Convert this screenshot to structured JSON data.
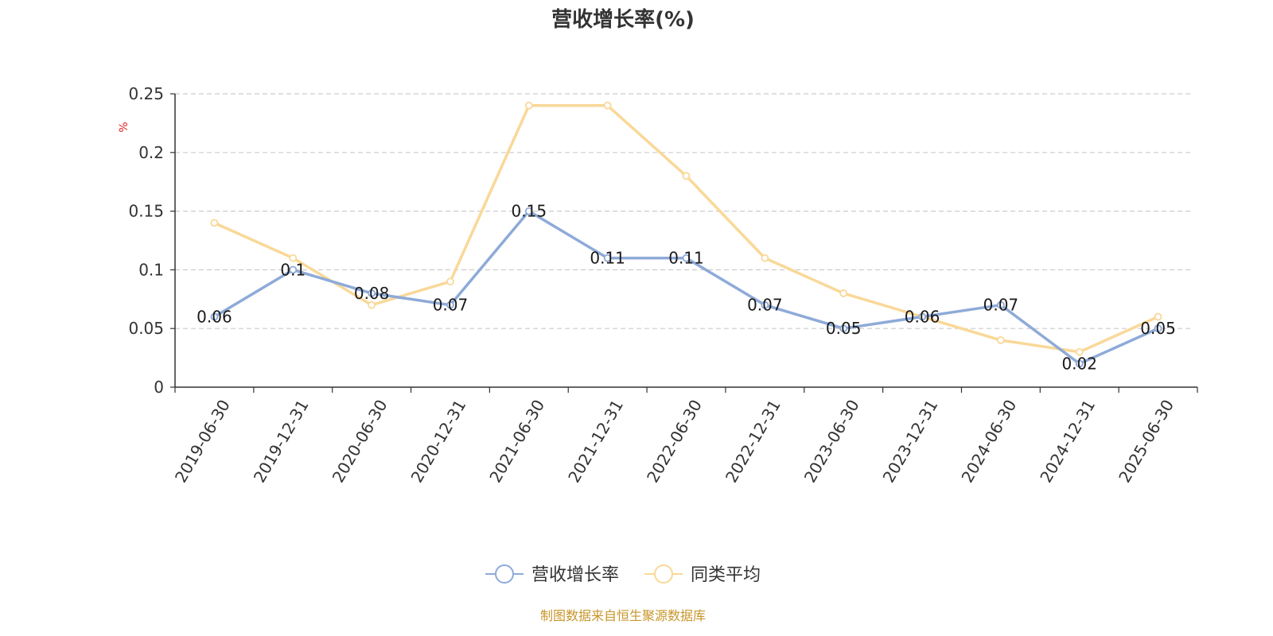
{
  "chart_data": {
    "type": "line",
    "title": "营收增长率(%)",
    "unit_label": "%",
    "categories": [
      "2019-06-30",
      "2019-12-31",
      "2020-06-30",
      "2020-12-31",
      "2021-06-30",
      "2021-12-31",
      "2022-06-30",
      "2022-12-31",
      "2023-06-30",
      "2023-12-31",
      "2024-06-30",
      "2024-12-31",
      "2025-06-30"
    ],
    "series": [
      {
        "name": "营收增长率",
        "color": "#8eaad8",
        "show_labels": true,
        "values": [
          0.06,
          0.1,
          0.08,
          0.07,
          0.15,
          0.11,
          0.11,
          0.07,
          0.05,
          0.06,
          0.07,
          0.02,
          0.05
        ]
      },
      {
        "name": "同类平均",
        "color": "#f9d898",
        "show_labels": false,
        "values": [
          0.14,
          0.11,
          0.07,
          0.09,
          0.24,
          0.24,
          0.18,
          0.11,
          0.08,
          0.06,
          0.04,
          0.03,
          0.06
        ]
      }
    ],
    "ylim": [
      0,
      0.25
    ],
    "yticks": [
      "0",
      "0.05",
      "0.1",
      "0.15",
      "0.2",
      "0.25"
    ],
    "grid": true,
    "legend_position": "bottom-center"
  },
  "source_text": "制图数据来自恒生聚源数据库"
}
